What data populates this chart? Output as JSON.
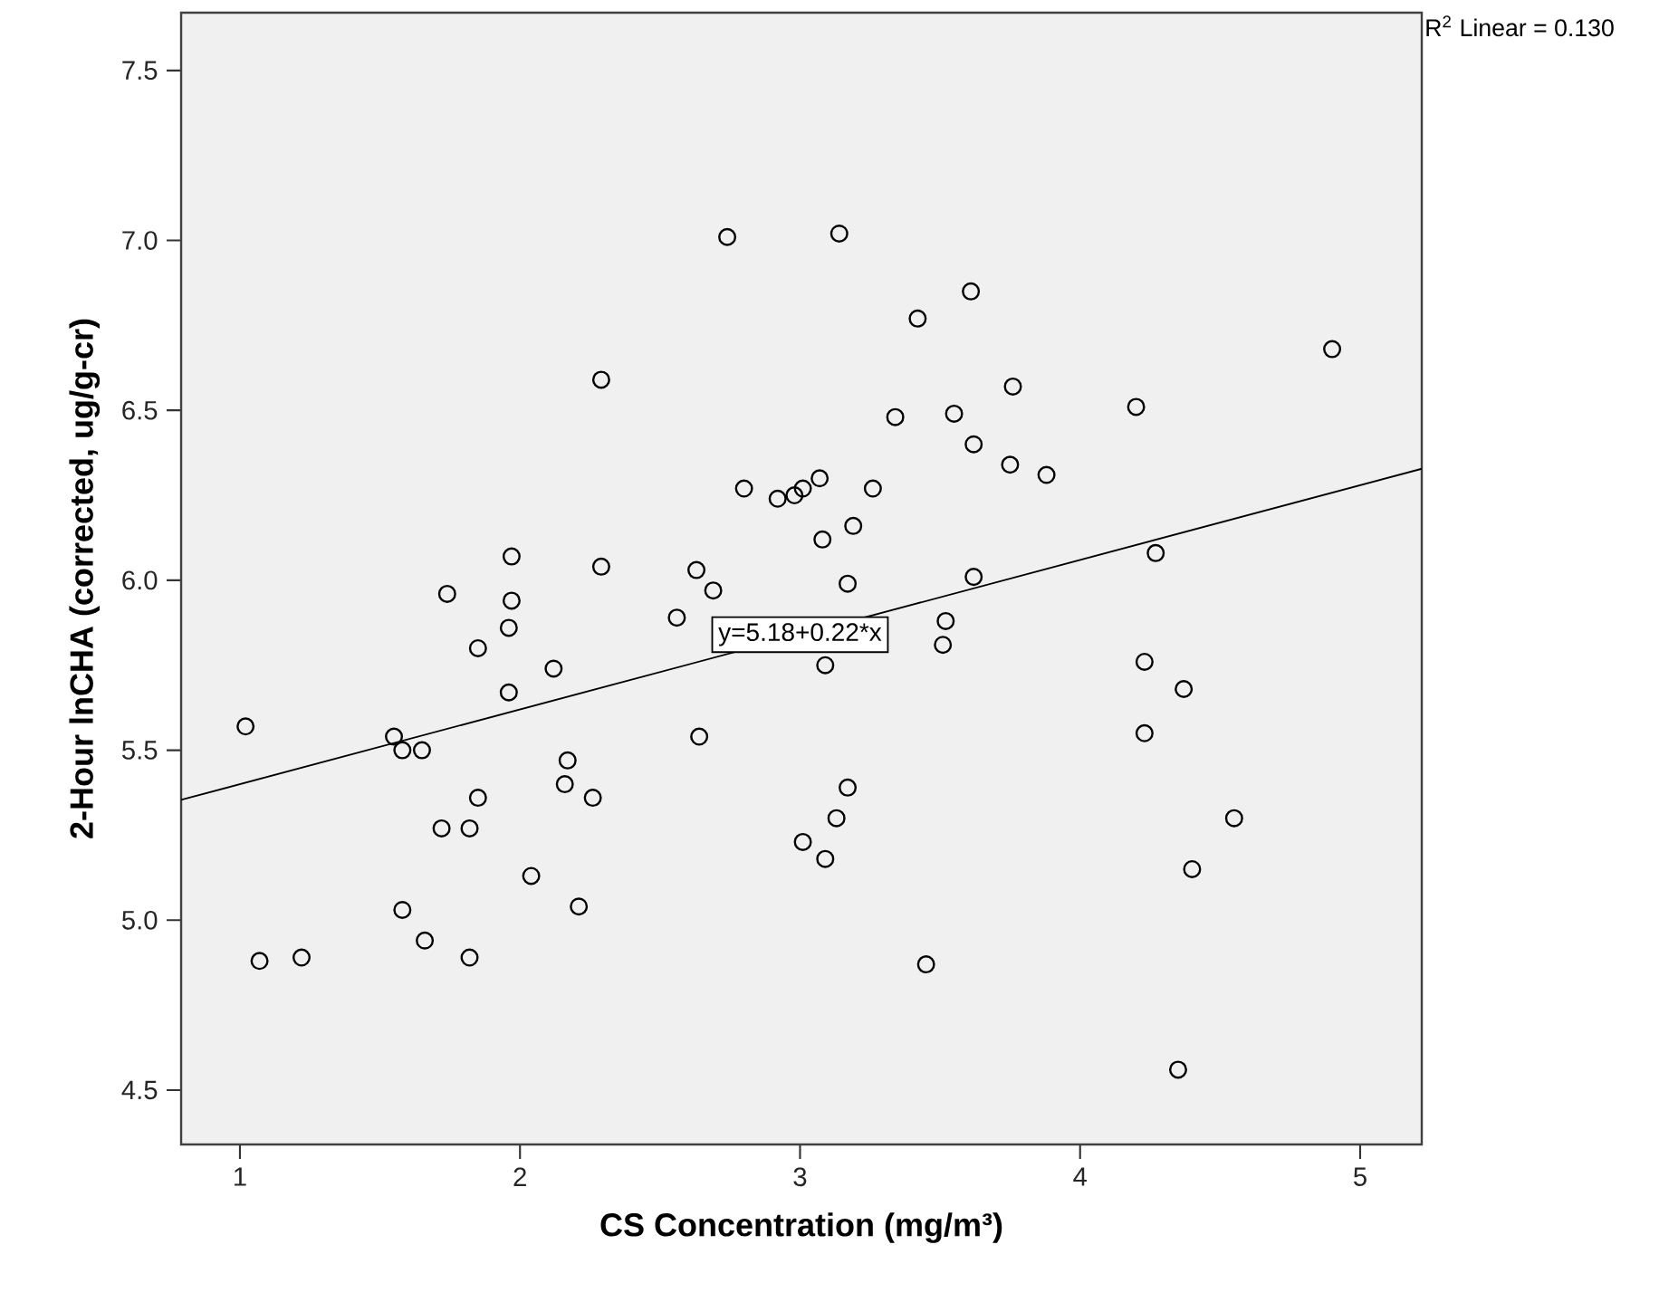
{
  "chart_data": {
    "type": "scatter",
    "xlabel": "CS Concentration (mg/m³)",
    "ylabel": "2-Hour lnCHA (corrected, ug/g-cr)",
    "xlim": [
      0.79,
      5.22
    ],
    "ylim": [
      4.34,
      7.67
    ],
    "xticks": [
      1,
      2,
      3,
      4,
      5
    ],
    "yticks": [
      4.5,
      {
        "value": 5,
        "label": "5.0"
      },
      5.5,
      {
        "value": 6,
        "label": "6.0"
      },
      6.5,
      {
        "value": 7,
        "label": "7.0"
      },
      7.5
    ],
    "annotations": [
      "R$^{2}$ Linear = 0.130",
      {
        "text": "y=5.18+0.22*x",
        "x": 3.0,
        "y": 5.84
      }
    ],
    "series": [
      {
        "color": "#000000",
        "marker": "circle",
        "x": [
          2.74,
          2.29,
          2.8,
          2.92,
          2.98,
          1.97,
          2.29,
          2.63,
          2.69,
          1.74,
          1.97,
          1.96,
          2.56,
          1.85,
          2.12,
          1.96,
          1.02,
          1.55,
          1.58,
          1.65,
          2.64,
          2.17,
          2.16,
          2.26,
          1.85,
          1.72,
          1.82,
          2.04,
          1.58,
          2.21,
          1.66,
          1.07,
          1.22,
          1.82,
          3.14,
          3.61,
          3.42,
          4.9,
          3.76,
          4.2,
          3.34,
          3.55,
          3.62,
          3.75,
          3.88,
          3.07,
          3.01,
          3.26,
          3.19,
          3.08,
          4.27,
          3.62,
          3.17,
          3.52,
          3.51,
          3.09,
          4.23,
          4.37,
          4.23,
          3.17,
          3.13,
          3.01,
          3.09,
          4.55,
          4.4,
          3.45,
          4.35
        ],
        "values": [
          7.01,
          6.59,
          6.27,
          6.24,
          6.25,
          6.07,
          6.04,
          6.03,
          5.97,
          5.96,
          5.94,
          5.86,
          5.89,
          5.8,
          5.74,
          5.67,
          5.57,
          5.54,
          5.5,
          5.5,
          5.54,
          5.47,
          5.4,
          5.36,
          5.36,
          5.27,
          5.27,
          5.13,
          5.03,
          5.04,
          4.94,
          4.88,
          4.89,
          4.89,
          7.02,
          6.85,
          6.77,
          6.68,
          6.57,
          6.51,
          6.48,
          6.49,
          6.4,
          6.34,
          6.31,
          6.3,
          6.27,
          6.27,
          6.16,
          6.12,
          6.08,
          6.01,
          5.99,
          5.88,
          5.81,
          5.75,
          5.76,
          5.68,
          5.55,
          5.39,
          5.3,
          5.23,
          5.18,
          5.3,
          5.15,
          4.87,
          4.56
        ]
      },
      {
        "type": "line",
        "color": "#000000",
        "marker": "none",
        "x": [
          0.79,
          5.22
        ],
        "values": [
          5.354,
          6.328
        ]
      }
    ]
  }
}
